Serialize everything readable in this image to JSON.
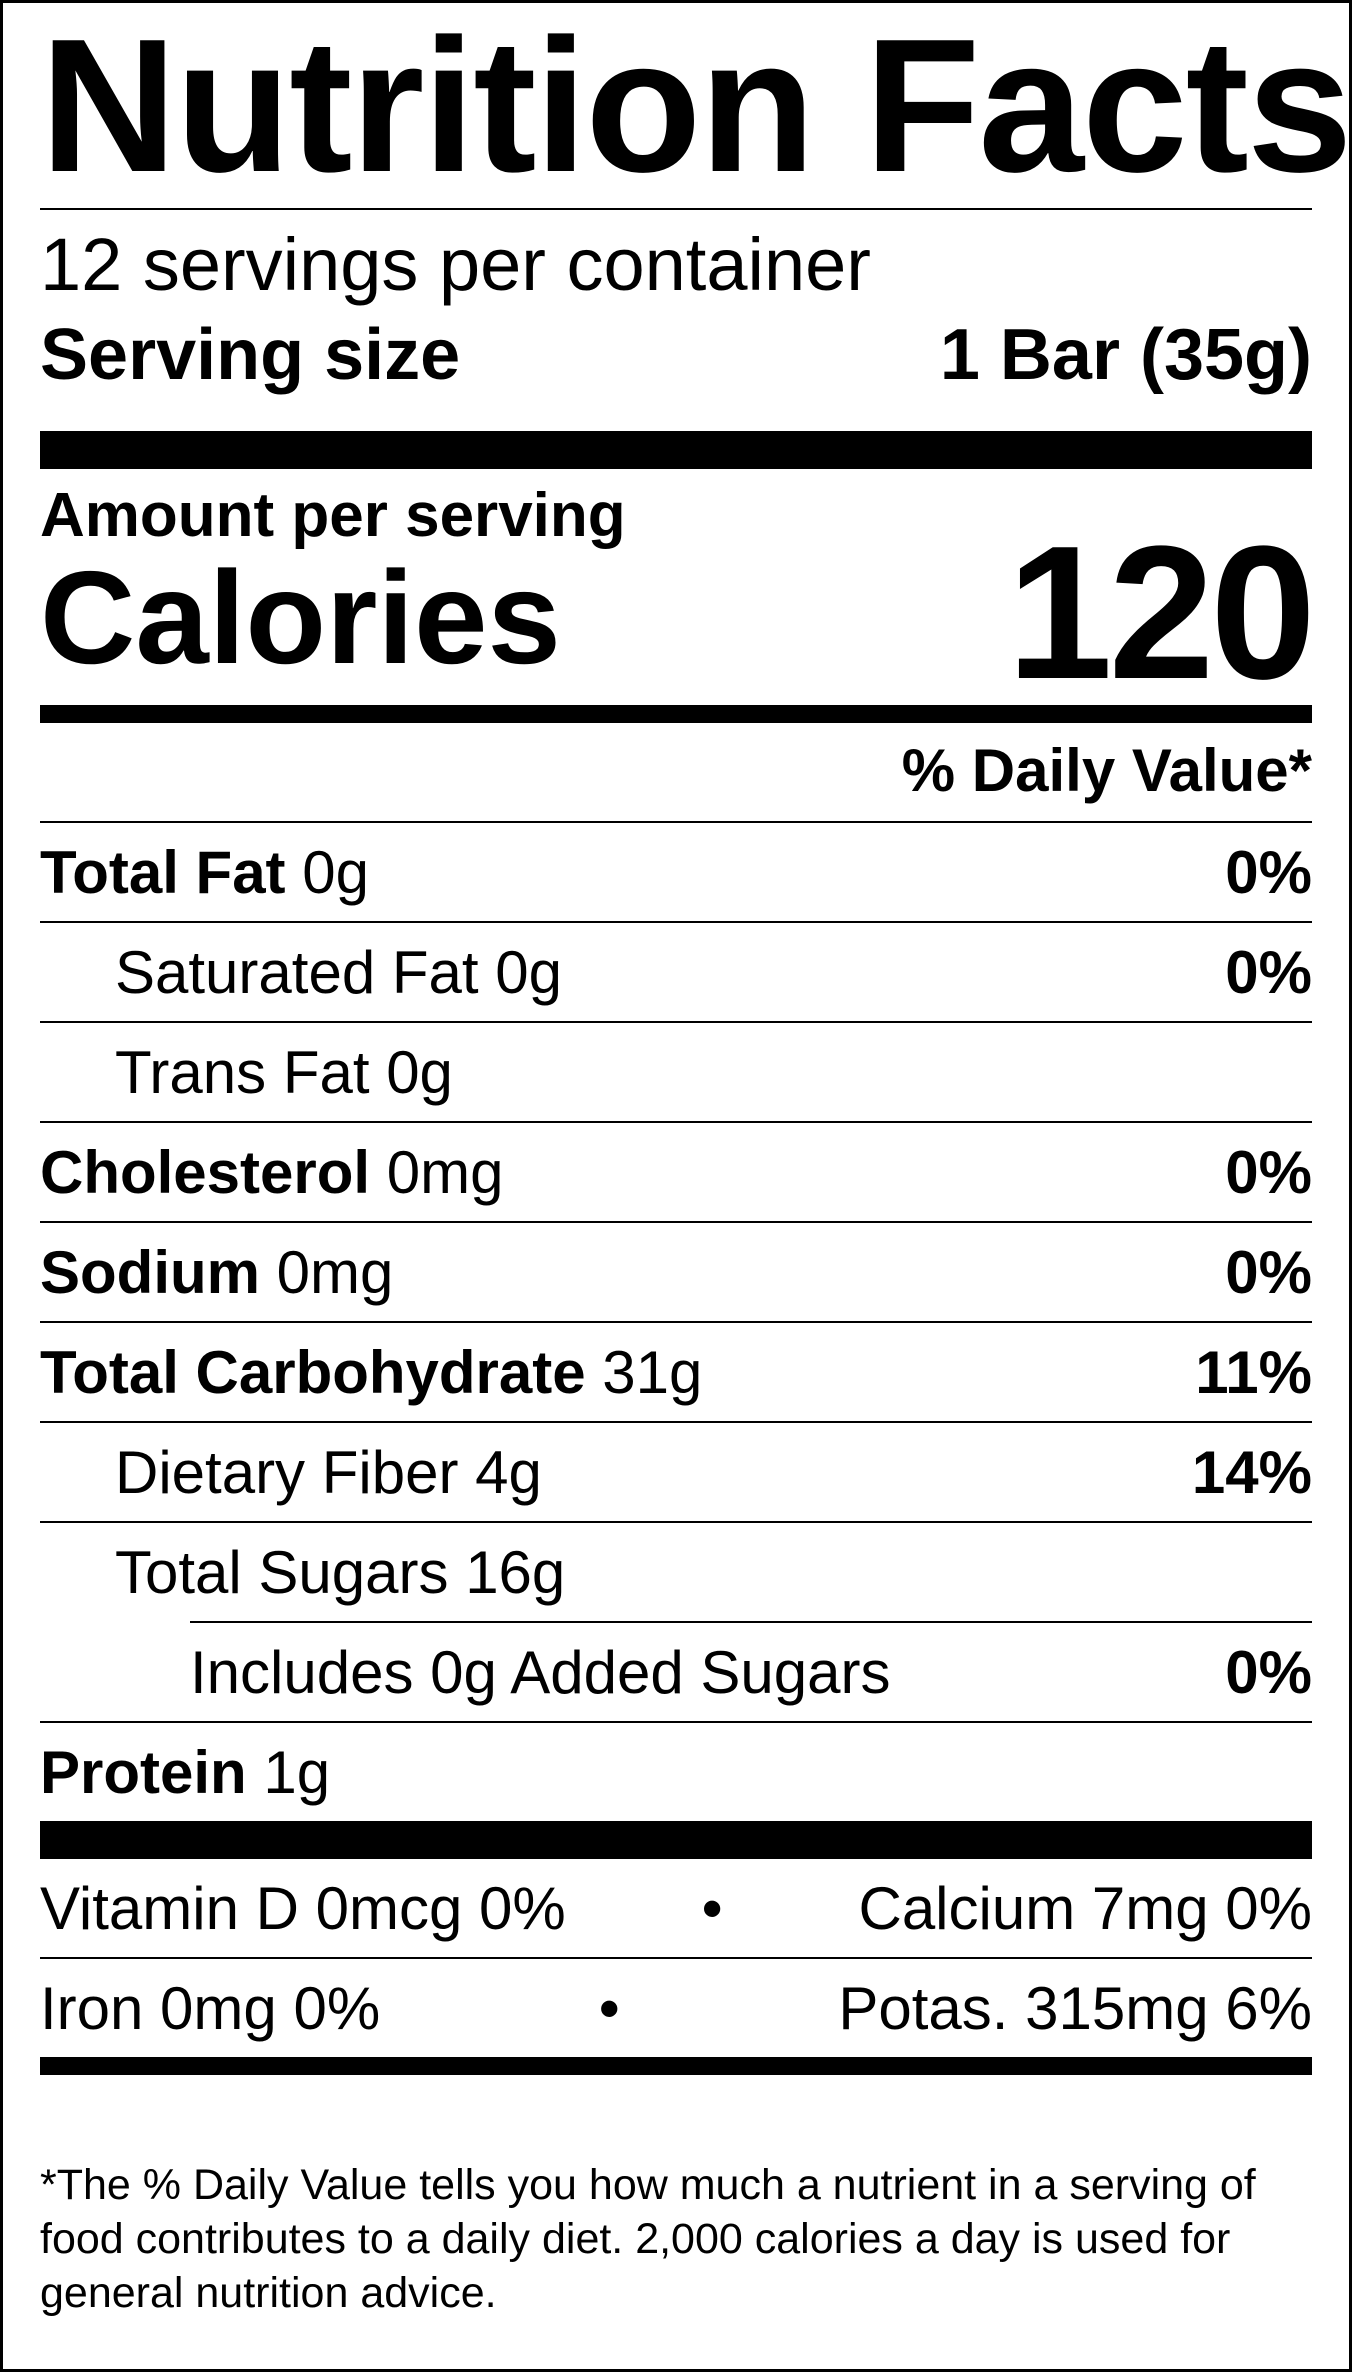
{
  "title": "Nutrition Facts",
  "servings_per_container": "12 servings per container",
  "serving_size": {
    "label": "Serving size",
    "value": "1 Bar (35g)"
  },
  "amount_per_serving": "Amount per serving",
  "calories": {
    "label": "Calories",
    "value": "120"
  },
  "daily_value_header": "% Daily Value*",
  "nutrients": [
    {
      "name": "Total Fat",
      "amount": "0g",
      "dv": "0%"
    },
    {
      "name": "Saturated Fat",
      "amount": "0g",
      "dv": "0%"
    },
    {
      "name": "Trans Fat",
      "amount": "0g",
      "dv": ""
    },
    {
      "name": "Cholesterol",
      "amount": "0mg",
      "dv": "0%"
    },
    {
      "name": "Sodium",
      "amount": "0mg",
      "dv": "0%"
    },
    {
      "name": "Total Carbohydrate",
      "amount": "31g",
      "dv": "11%"
    },
    {
      "name": "Dietary Fiber",
      "amount": "4g",
      "dv": "14%"
    },
    {
      "name": "Total Sugars",
      "amount": "16g",
      "dv": ""
    },
    {
      "name": "Includes 0g Added Sugars",
      "amount": "",
      "dv": "0%"
    },
    {
      "name": "Protein",
      "amount": "1g",
      "dv": ""
    }
  ],
  "vitamins": [
    {
      "left": "Vitamin D 0mcg 0%",
      "separator": "•",
      "right": "Calcium 7mg 0%"
    },
    {
      "left": "Iron 0mg 0%",
      "separator": "•",
      "right": "Potas. 315mg 6%"
    }
  ],
  "footnote": "*The % Daily Value tells you how much a nutrient in a serving of food contributes to a daily diet. 2,000 calories a day is used for general nutrition advice."
}
